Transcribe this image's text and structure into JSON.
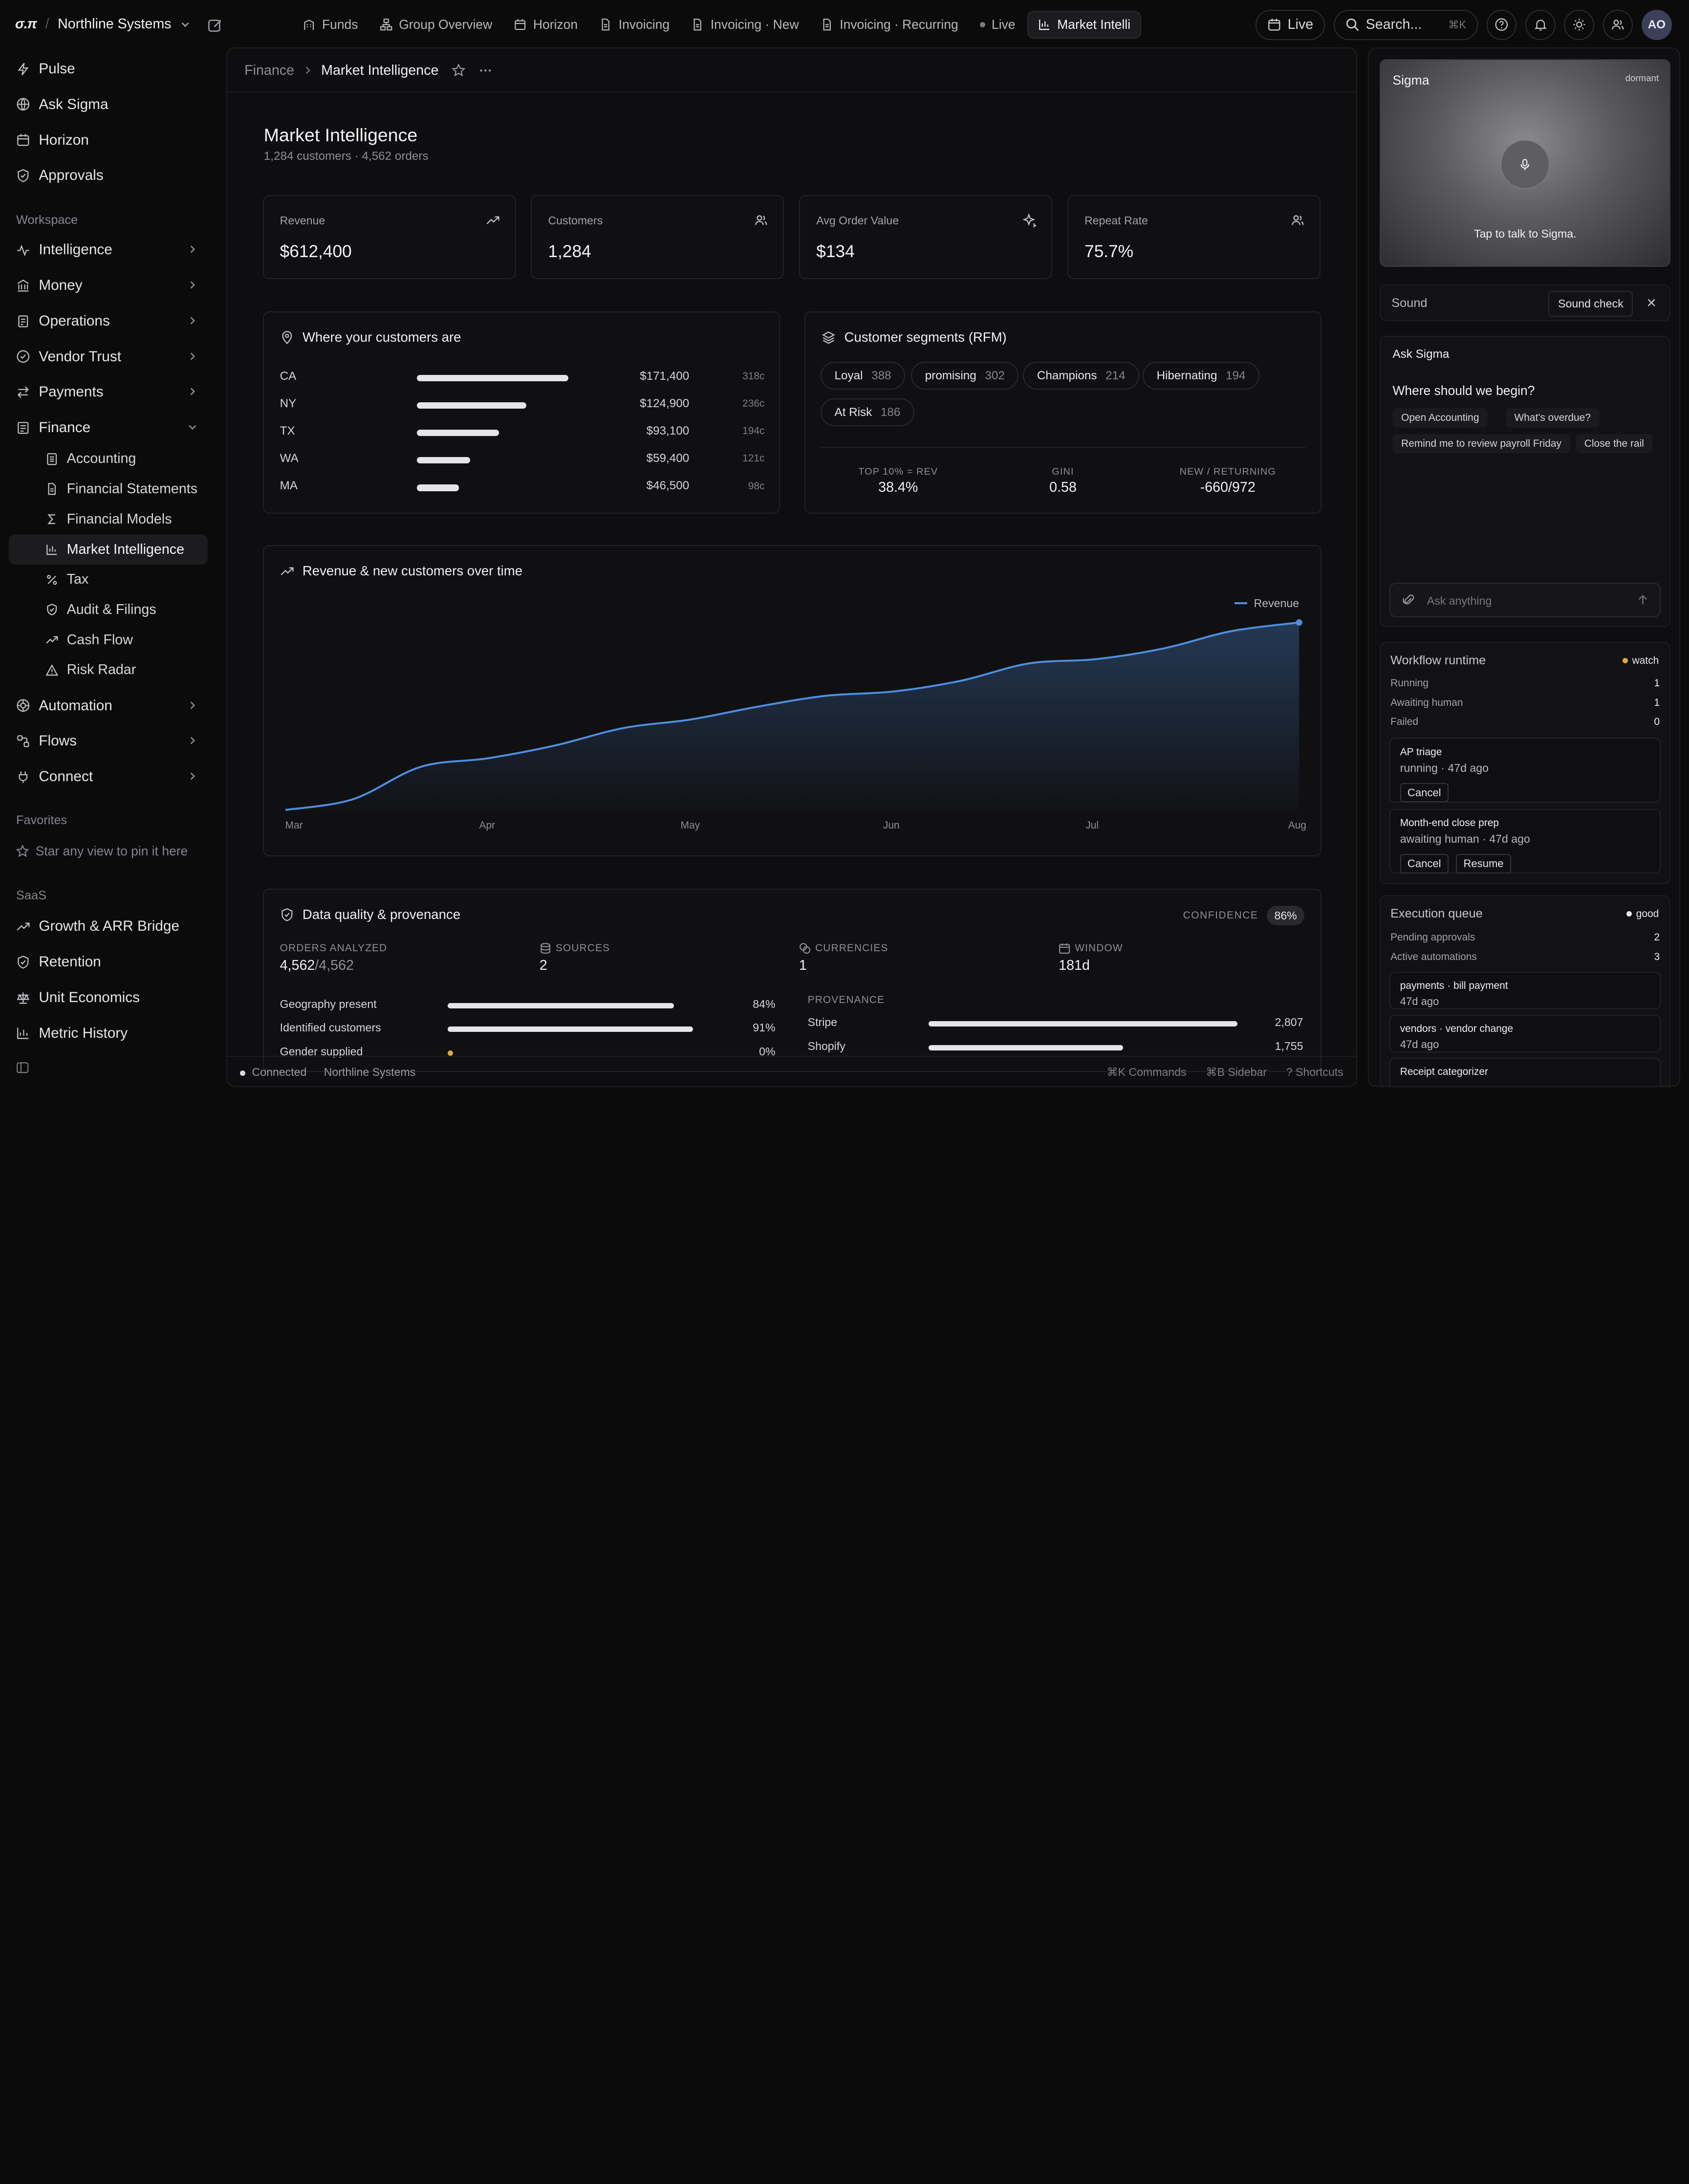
{
  "brand": {
    "logo": "σ.π",
    "org": "Northline Systems"
  },
  "tabs": [
    {
      "label": "Funds",
      "icon": "building-icon"
    },
    {
      "label": "Group Overview",
      "icon": "network-icon"
    },
    {
      "label": "Horizon",
      "icon": "calendar-icon"
    },
    {
      "label": "Invoicing",
      "icon": "document-icon"
    },
    {
      "label": "Invoicing · New",
      "icon": "document-icon"
    },
    {
      "label": "Invoicing · Recurring",
      "icon": "document-icon"
    },
    {
      "label": "Live",
      "icon": "dot-icon"
    },
    {
      "label": "Market Intelli",
      "icon": "bar-chart-icon"
    }
  ],
  "topbar": {
    "live_label": "Live",
    "search_placeholder": "Search...",
    "search_shortcut": "⌘K",
    "avatar_initials": "AO"
  },
  "sidebar": {
    "top_items": [
      "Pulse",
      "Ask Sigma",
      "Horizon",
      "Approvals"
    ],
    "workspace_label": "Workspace",
    "workspace_items": [
      "Intelligence",
      "Money",
      "Operations",
      "Vendor Trust",
      "Payments",
      "Finance"
    ],
    "finance_sub": [
      "Accounting",
      "Financial Statements",
      "Financial Models",
      "Market Intelligence",
      "Tax",
      "Audit & Filings",
      "Cash Flow",
      "Risk Radar"
    ],
    "lower_items": [
      "Automation",
      "Flows",
      "Connect"
    ],
    "favorites_label": "Favorites",
    "favorites_hint": "Star any view to pin it here",
    "saas_label": "SaaS",
    "saas_items": [
      "Growth & ARR Bridge",
      "Retention",
      "Unit Economics",
      "Metric History"
    ]
  },
  "breadcrumb": {
    "parent": "Finance",
    "current": "Market Intelligence"
  },
  "page": {
    "title": "Market Intelligence",
    "subtitle": "1,284 customers · 4,562 orders"
  },
  "kpis": [
    {
      "label": "Revenue",
      "value": "$612,400",
      "icon": "trend-up-icon"
    },
    {
      "label": "Customers",
      "value": "1,284",
      "icon": "users-icon"
    },
    {
      "label": "Avg Order Value",
      "value": "$134",
      "icon": "sparkle-icon"
    },
    {
      "label": "Repeat Rate",
      "value": "75.7%",
      "icon": "users-icon"
    }
  ],
  "geo": {
    "title": "Where your customers are",
    "rows": [
      {
        "state": "CA",
        "amount": "$171,400",
        "count": "318c",
        "share": 0.94
      },
      {
        "state": "NY",
        "amount": "$124,900",
        "count": "236c",
        "share": 0.68
      },
      {
        "state": "TX",
        "amount": "$93,100",
        "count": "194c",
        "share": 0.51
      },
      {
        "state": "WA",
        "amount": "$59,400",
        "count": "121c",
        "share": 0.33
      },
      {
        "state": "MA",
        "amount": "$46,500",
        "count": "98c",
        "share": 0.26
      }
    ]
  },
  "segments": {
    "title": "Customer segments (RFM)",
    "pills": [
      {
        "name": "Loyal",
        "count": "388"
      },
      {
        "name": "promising",
        "count": "302"
      },
      {
        "name": "Champions",
        "count": "214"
      },
      {
        "name": "Hibernating",
        "count": "194"
      },
      {
        "name": "At Risk",
        "count": "186"
      }
    ],
    "stats": [
      {
        "label": "TOP 10% = REV",
        "value": "38.4%"
      },
      {
        "label": "GINI",
        "value": "0.58"
      },
      {
        "label": "NEW / RETURNING",
        "value": "-660/972"
      }
    ]
  },
  "revenue_chart": {
    "title": "Revenue & new customers over time",
    "legend": "Revenue",
    "color": "#4f8ee0"
  },
  "chart_data": {
    "type": "area",
    "title": "Revenue & new customers over time",
    "x_ticks": [
      "Mar",
      "Apr",
      "May",
      "Jun",
      "Jul",
      "Aug"
    ],
    "series": [
      {
        "name": "Revenue",
        "values": [
          0.0,
          0.05,
          0.2,
          0.24,
          0.3,
          0.38,
          0.42,
          0.48,
          0.53,
          0.55,
          0.6,
          0.68,
          0.7,
          0.75,
          0.83,
          0.87
        ]
      }
    ],
    "grid": false,
    "legend_position": "top-right"
  },
  "data_quality": {
    "title": "Data quality & provenance",
    "confidence_label": "CONFIDENCE",
    "confidence_value": "86%",
    "stats": [
      {
        "label": "ORDERS ANALYZED",
        "value": "4,562",
        "sub": "/4,562",
        "icon": ""
      },
      {
        "label": "SOURCES",
        "value": "2",
        "sub": "",
        "icon": "database-icon"
      },
      {
        "label": "CURRENCIES",
        "value": "1",
        "sub": "",
        "icon": "coins-icon"
      },
      {
        "label": "WINDOW",
        "value": "181d",
        "sub": "",
        "icon": "calendar-icon"
      }
    ],
    "coverage": [
      {
        "label": "Geography present",
        "pct": "84%",
        "share": 0.84
      },
      {
        "label": "Identified customers",
        "pct": "91%",
        "share": 0.91
      },
      {
        "label": "Gender supplied",
        "pct": "0%",
        "share": 0.0
      }
    ],
    "provenance_label": "PROVENANCE",
    "provenance": [
      {
        "label": "Stripe",
        "value": "2,807",
        "share": 1.0
      },
      {
        "label": "Shopify",
        "value": "1,755",
        "share": 0.63
      }
    ]
  },
  "statusbar": {
    "connection": "Connected",
    "org": "Northline Systems",
    "commands": "⌘K Commands",
    "sidebar": "⌘B Sidebar",
    "shortcuts": "? Shortcuts"
  },
  "rail": {
    "voice": {
      "title": "Sigma",
      "state": "dormant",
      "hint": "Tap to talk to Sigma."
    },
    "sound": {
      "label": "Sound",
      "check": "Sound check"
    },
    "ask": {
      "title": "Ask Sigma",
      "question": "Where should we begin?",
      "chips": [
        "Open Accounting",
        "What's overdue?",
        "Remind me to review payroll Friday",
        "Close the rail"
      ],
      "placeholder": "Ask anything"
    },
    "workflow": {
      "title": "Workflow runtime",
      "status": "watch",
      "status_color": "#e2a93b",
      "rows": [
        {
          "k": "Running",
          "v": "1"
        },
        {
          "k": "Awaiting human",
          "v": "1"
        },
        {
          "k": "Failed",
          "v": "0"
        }
      ],
      "jobs": [
        {
          "name": "AP triage",
          "state": "running · 47d ago",
          "buttons": [
            "Cancel"
          ]
        },
        {
          "name": "Month-end close prep",
          "state": "awaiting human · 47d ago",
          "buttons": [
            "Cancel",
            "Resume"
          ]
        }
      ]
    },
    "queue": {
      "title": "Execution queue",
      "status": "good",
      "status_color": "#e8e8ea",
      "rows": [
        {
          "k": "Pending approvals",
          "v": "2"
        },
        {
          "k": "Active automations",
          "v": "3"
        }
      ],
      "items": [
        {
          "name": "payments · bill payment",
          "when": "47d ago"
        },
        {
          "name": "vendors · vendor change",
          "when": "47d ago"
        },
        {
          "name": "Receipt categorizer",
          "when": ""
        }
      ]
    }
  }
}
